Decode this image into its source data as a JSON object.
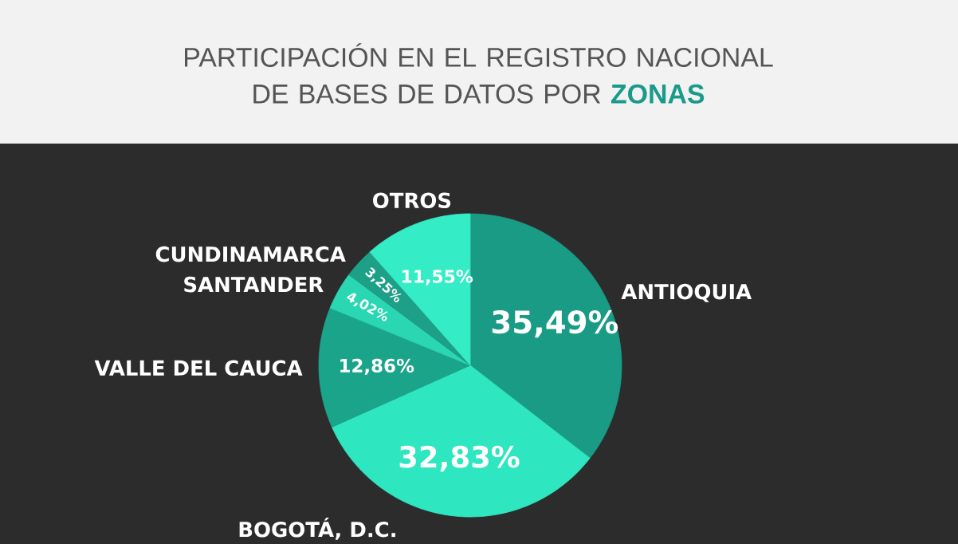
{
  "chart_data": {
    "type": "pie",
    "title": "PARTICIPACIÓN EN EL REGISTRO NACIONAL DE BASES DE DATOS POR **ZONAS**",
    "categories": [
      "ANTIOQUIA",
      "BOGOTÁ, D.C.",
      "VALLE DEL CAUCA",
      "SANTANDER",
      "CUNDINAMARCA",
      "OTROS"
    ],
    "values": [
      35.49,
      32.83,
      12.86,
      4.02,
      3.25,
      11.55
    ],
    "colors": [
      "#1a9b85",
      "#2ee6bf",
      "#1aa58b",
      "#2ad7b2",
      "#1e9f88",
      "#34ecc6"
    ],
    "value_labels": [
      "35,49%",
      "32,83%",
      "12,86%",
      "4,02%",
      "3,25%",
      "11,55%"
    ]
  }
}
